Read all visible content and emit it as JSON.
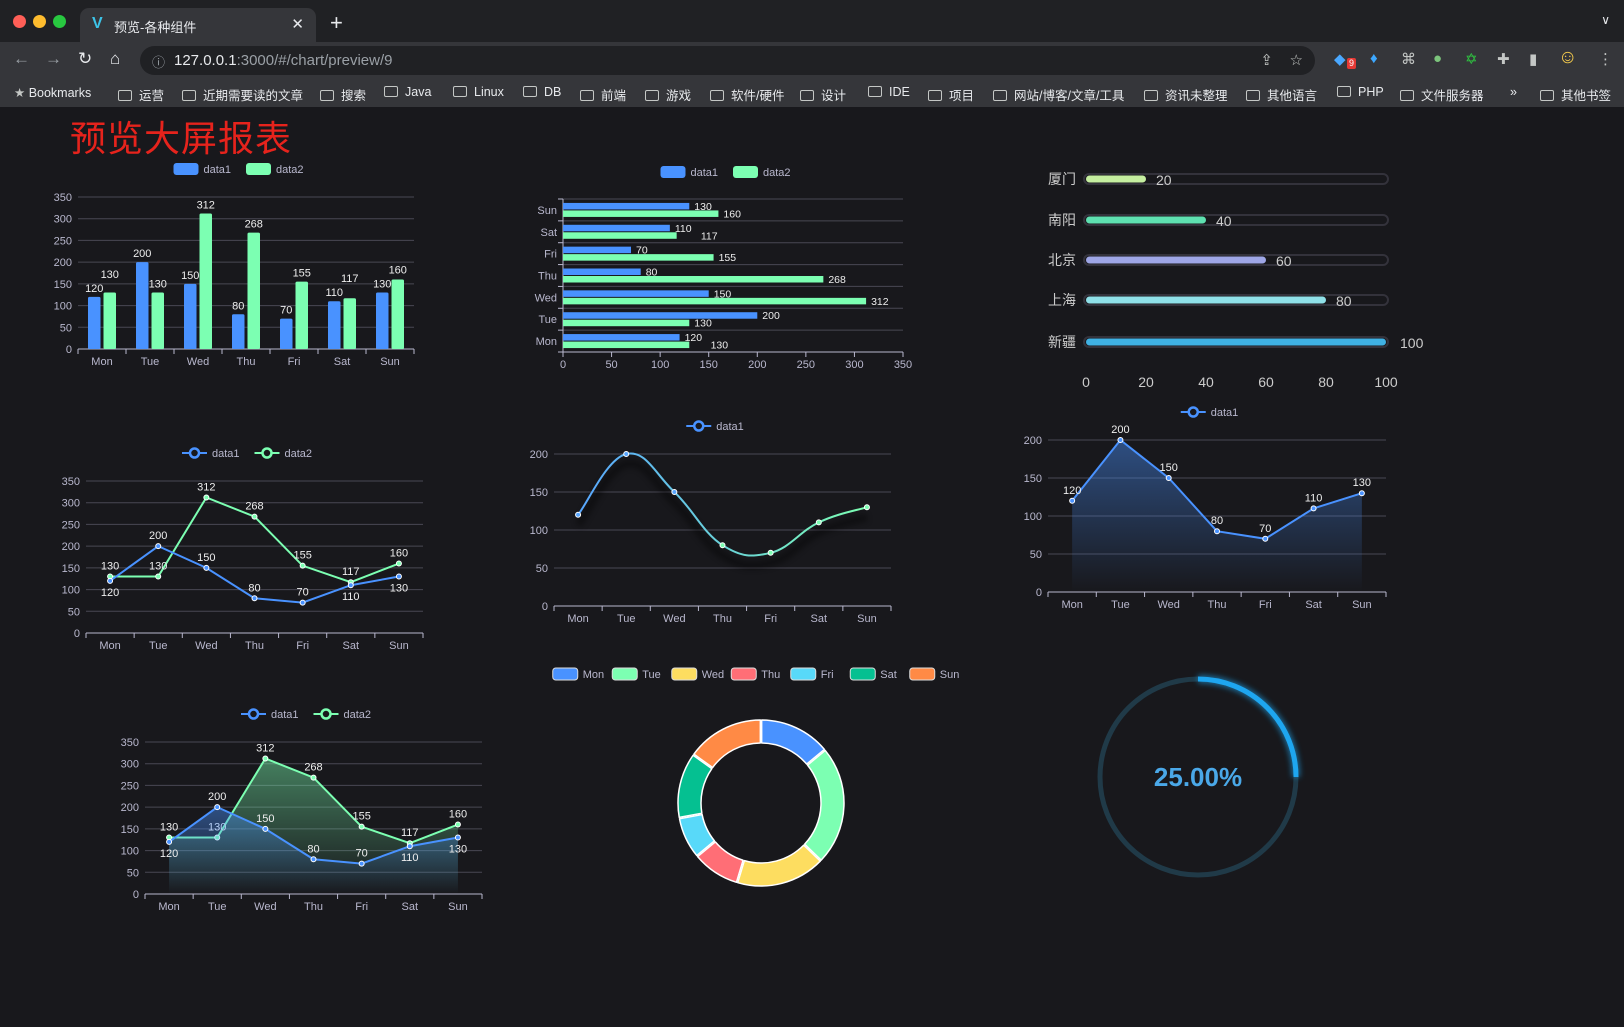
{
  "browser": {
    "tab_title": "预览-各种组件",
    "url_host": "127.0.0.1",
    "url_rest": ":3000/#/chart/preview/9",
    "extension_badge": "9",
    "bookmarks": [
      "Bookmarks",
      "运营",
      "近期需要读的文章",
      "搜索",
      "Java",
      "Linux",
      "DB",
      "前端",
      "游戏",
      "软件/硬件",
      "设计",
      "IDE",
      "项目",
      "网站/博客/文章/工具",
      "资讯未整理",
      "其他语言",
      "PHP",
      "文件服务器"
    ],
    "more": "»",
    "other_bookmarks": "其他书签"
  },
  "page_title": "预览大屏报表",
  "colors": {
    "data1": "#4992ff",
    "data2": "#7cffb2",
    "title": "#e6231c",
    "background": "#18181c"
  },
  "chart_data": [
    {
      "type": "bar",
      "orientation": "vertical",
      "categories": [
        "Mon",
        "Tue",
        "Wed",
        "Thu",
        "Fri",
        "Sat",
        "Sun"
      ],
      "series": [
        {
          "name": "data1",
          "values": [
            120,
            200,
            150,
            80,
            70,
            110,
            130
          ]
        },
        {
          "name": "data2",
          "values": [
            130,
            130,
            312,
            268,
            155,
            117,
            160
          ]
        }
      ],
      "yticks": [
        0,
        50,
        100,
        150,
        200,
        250,
        300,
        350
      ],
      "ylim": [
        0,
        350
      ],
      "grid": true,
      "legend": "top"
    },
    {
      "type": "bar",
      "orientation": "horizontal",
      "categories": [
        "Mon",
        "Tue",
        "Wed",
        "Thu",
        "Fri",
        "Sat",
        "Sun"
      ],
      "series": [
        {
          "name": "data1",
          "values": [
            120,
            200,
            150,
            80,
            70,
            110,
            130
          ]
        },
        {
          "name": "data2",
          "values": [
            130,
            130,
            312,
            268,
            155,
            117,
            160
          ]
        }
      ],
      "xticks": [
        0,
        50,
        100,
        150,
        200,
        250,
        300,
        350
      ],
      "xlim": [
        0,
        350
      ],
      "grid": true,
      "legend": "top"
    },
    {
      "type": "bar",
      "orientation": "horizontal",
      "style": "progress",
      "categories": [
        "厦门",
        "南阳",
        "北京",
        "上海",
        "新疆"
      ],
      "values": [
        20,
        40,
        60,
        80,
        100
      ],
      "colors": [
        "#c5eea0",
        "#5ee0b0",
        "#9ea6e6",
        "#8fe0e8",
        "#3fb1e3"
      ],
      "xticks": [
        0,
        20,
        40,
        60,
        80,
        100
      ],
      "xlim": [
        0,
        100
      ]
    },
    {
      "type": "line",
      "categories": [
        "Mon",
        "Tue",
        "Wed",
        "Thu",
        "Fri",
        "Sat",
        "Sun"
      ],
      "series": [
        {
          "name": "data1",
          "values": [
            120,
            200,
            150,
            80,
            70,
            110,
            130
          ]
        },
        {
          "name": "data2",
          "values": [
            130,
            130,
            312,
            268,
            155,
            117,
            160
          ]
        }
      ],
      "yticks": [
        0,
        50,
        100,
        150,
        200,
        250,
        300,
        350
      ],
      "ylim": [
        0,
        350
      ],
      "grid": true,
      "legend": "top"
    },
    {
      "type": "line",
      "smooth": true,
      "categories": [
        "Mon",
        "Tue",
        "Wed",
        "Thu",
        "Fri",
        "Sat",
        "Sun"
      ],
      "series": [
        {
          "name": "data1",
          "values": [
            120,
            200,
            150,
            80,
            70,
            110,
            130
          ]
        }
      ],
      "yticks": [
        0,
        50,
        100,
        150,
        200
      ],
      "ylim": [
        0,
        200
      ],
      "grid": true,
      "legend": "top"
    },
    {
      "type": "area",
      "categories": [
        "Mon",
        "Tue",
        "Wed",
        "Thu",
        "Fri",
        "Sat",
        "Sun"
      ],
      "series": [
        {
          "name": "data1",
          "values": [
            120,
            200,
            150,
            80,
            70,
            110,
            130
          ]
        }
      ],
      "yticks": [
        0,
        50,
        100,
        150,
        200
      ],
      "ylim": [
        0,
        200
      ],
      "grid": true,
      "legend": "top"
    },
    {
      "type": "area",
      "categories": [
        "Mon",
        "Tue",
        "Wed",
        "Thu",
        "Fri",
        "Sat",
        "Sun"
      ],
      "series": [
        {
          "name": "data1",
          "values": [
            120,
            200,
            150,
            80,
            70,
            110,
            130
          ]
        },
        {
          "name": "data2",
          "values": [
            130,
            130,
            312,
            268,
            155,
            117,
            160
          ]
        }
      ],
      "yticks": [
        0,
        50,
        100,
        150,
        200,
        250,
        300,
        350
      ],
      "ylim": [
        0,
        350
      ],
      "grid": true,
      "legend": "top"
    },
    {
      "type": "pie",
      "donut": true,
      "categories": [
        "Mon",
        "Tue",
        "Wed",
        "Thu",
        "Fri",
        "Sat",
        "Sun"
      ],
      "values": [
        120,
        200,
        150,
        80,
        70,
        110,
        130
      ],
      "colors": [
        "#4992ff",
        "#7cffb2",
        "#fddd60",
        "#ff6e76",
        "#58d9f9",
        "#05c091",
        "#ff8a45"
      ],
      "legend": "top"
    },
    {
      "type": "gauge",
      "value": 25,
      "max": 100,
      "label": "25.00%",
      "color": "#1ea6f0"
    }
  ]
}
